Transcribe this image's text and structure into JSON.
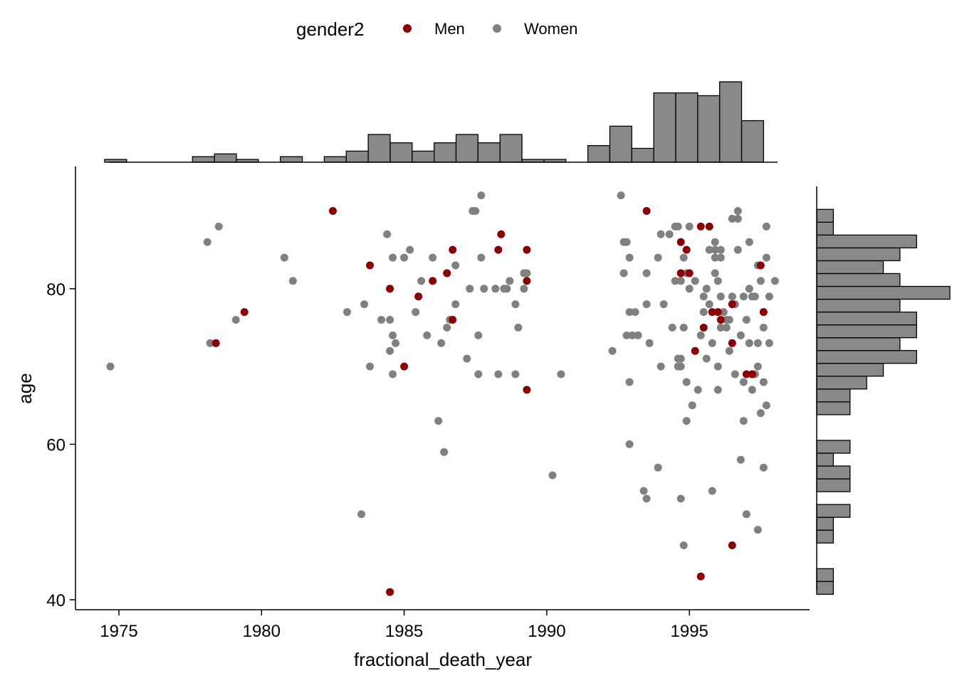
{
  "chart_data": {
    "type": "scatter",
    "title": "",
    "xlabel": "fractional_death_year",
    "ylabel": "age",
    "xlim": [
      1973.5,
      1999.2
    ],
    "ylim": [
      38.5,
      95
    ],
    "x_ticks": [
      1975,
      1980,
      1985,
      1990,
      1995
    ],
    "y_ticks": [
      40,
      60,
      80
    ],
    "x_tick_labels": [
      "1975",
      "1980",
      "1985",
      "1990",
      "1995"
    ],
    "y_tick_labels": [
      "40",
      "60",
      "80"
    ],
    "grid": false,
    "legend": {
      "title": "gender2",
      "position": "top",
      "entries": [
        {
          "label": "Men",
          "color": "#8b0000"
        },
        {
          "label": "Women",
          "color": "#808080"
        }
      ]
    },
    "series": [
      {
        "name": "Women",
        "color": "#808080",
        "points": [
          [
            1974.7,
            70
          ],
          [
            1978.1,
            86
          ],
          [
            1978.2,
            73
          ],
          [
            1978.5,
            88
          ],
          [
            1979.1,
            76
          ],
          [
            1980.8,
            84
          ],
          [
            1981.1,
            81
          ],
          [
            1983,
            77
          ],
          [
            1983.5,
            51
          ],
          [
            1983.6,
            78
          ],
          [
            1983.8,
            70
          ],
          [
            1984.2,
            76
          ],
          [
            1984.4,
            87
          ],
          [
            1984.5,
            72
          ],
          [
            1984.6,
            74
          ],
          [
            1984.6,
            69
          ],
          [
            1984.6,
            84
          ],
          [
            1984.7,
            73
          ],
          [
            1984.5,
            76
          ],
          [
            1985,
            84
          ],
          [
            1985.2,
            85
          ],
          [
            1985.4,
            77
          ],
          [
            1985.6,
            81
          ],
          [
            1985.8,
            74
          ],
          [
            1986,
            84
          ],
          [
            1986.2,
            63
          ],
          [
            1986.3,
            73
          ],
          [
            1986.4,
            59
          ],
          [
            1986.5,
            75
          ],
          [
            1986.6,
            76
          ],
          [
            1986.8,
            78
          ],
          [
            1986.8,
            83
          ],
          [
            1987.2,
            71
          ],
          [
            1987.4,
            90
          ],
          [
            1987.5,
            90
          ],
          [
            1987.6,
            74
          ],
          [
            1987.6,
            69
          ],
          [
            1987.7,
            92
          ],
          [
            1987.7,
            84
          ],
          [
            1987.8,
            80
          ],
          [
            1987.3,
            80
          ],
          [
            1988.2,
            80
          ],
          [
            1988.3,
            69
          ],
          [
            1988.5,
            80
          ],
          [
            1988.7,
            81
          ],
          [
            1988.6,
            80
          ],
          [
            1988.9,
            78
          ],
          [
            1988.9,
            69
          ],
          [
            1989,
            75
          ],
          [
            1989.2,
            82
          ],
          [
            1989.3,
            82
          ],
          [
            1989.2,
            80
          ],
          [
            1990.2,
            56
          ],
          [
            1990.5,
            69
          ],
          [
            1992.3,
            72
          ],
          [
            1992.6,
            92
          ],
          [
            1992.7,
            86
          ],
          [
            1992.7,
            82
          ],
          [
            1992.8,
            86
          ],
          [
            1992.8,
            74
          ],
          [
            1992.9,
            84
          ],
          [
            1992.9,
            77
          ],
          [
            1992.9,
            68
          ],
          [
            1992.9,
            60
          ],
          [
            1993,
            74
          ],
          [
            1993.1,
            77
          ],
          [
            1993.2,
            74
          ],
          [
            1993.4,
            54
          ],
          [
            1993.5,
            53
          ],
          [
            1993.5,
            82
          ],
          [
            1993.6,
            73
          ],
          [
            1993.5,
            78
          ],
          [
            1993.9,
            57
          ],
          [
            1993.9,
            84
          ],
          [
            1994,
            70
          ],
          [
            1994,
            87
          ],
          [
            1994.1,
            78
          ],
          [
            1994.3,
            87
          ],
          [
            1994.4,
            75
          ],
          [
            1994.5,
            81
          ],
          [
            1994.5,
            88
          ],
          [
            1994.6,
            70
          ],
          [
            1994.6,
            71
          ],
          [
            1994.6,
            88
          ],
          [
            1994.7,
            53
          ],
          [
            1994.7,
            71
          ],
          [
            1994.7,
            81
          ],
          [
            1994.7,
            70
          ],
          [
            1994.8,
            47
          ],
          [
            1994.8,
            84
          ],
          [
            1994.8,
            75
          ],
          [
            1994.9,
            68
          ],
          [
            1994.9,
            82
          ],
          [
            1994.9,
            63
          ],
          [
            1995,
            88
          ],
          [
            1995,
            80
          ],
          [
            1995.1,
            65
          ],
          [
            1995.2,
            81
          ],
          [
            1995.3,
            67
          ],
          [
            1995.4,
            74
          ],
          [
            1995.5,
            79
          ],
          [
            1995.6,
            80
          ],
          [
            1995.6,
            71
          ],
          [
            1995.7,
            78
          ],
          [
            1995.7,
            85
          ],
          [
            1995.8,
            77
          ],
          [
            1995.8,
            54
          ],
          [
            1995.8,
            73
          ],
          [
            1995.9,
            85
          ],
          [
            1995.9,
            82
          ],
          [
            1995.9,
            86
          ],
          [
            1995.9,
            84
          ],
          [
            1996,
            67
          ],
          [
            1996,
            70
          ],
          [
            1996,
            81
          ],
          [
            1996.1,
            85
          ],
          [
            1996.1,
            79
          ],
          [
            1996.1,
            84
          ],
          [
            1996.2,
            77
          ],
          [
            1996.3,
            75
          ],
          [
            1996.4,
            72
          ],
          [
            1996.4,
            76
          ],
          [
            1996.5,
            79
          ],
          [
            1996.5,
            89
          ],
          [
            1996.6,
            69
          ],
          [
            1996.6,
            78
          ],
          [
            1996.7,
            90
          ],
          [
            1996.7,
            89
          ],
          [
            1996.7,
            85
          ],
          [
            1996.8,
            74
          ],
          [
            1996.8,
            58
          ],
          [
            1996.9,
            68
          ],
          [
            1996.9,
            79
          ],
          [
            1996.9,
            63
          ],
          [
            1997,
            51
          ],
          [
            1997,
            76
          ],
          [
            1997.1,
            80
          ],
          [
            1997.1,
            86
          ],
          [
            1997.1,
            73
          ],
          [
            1997.2,
            79
          ],
          [
            1997.3,
            79
          ],
          [
            1997.3,
            69
          ],
          [
            1997.4,
            49
          ],
          [
            1997.4,
            70
          ],
          [
            1997.4,
            73
          ],
          [
            1997.4,
            83
          ],
          [
            1997.5,
            64
          ],
          [
            1997.5,
            81
          ],
          [
            1997.6,
            57
          ],
          [
            1997.6,
            68
          ],
          [
            1997.6,
            77
          ],
          [
            1997.6,
            75
          ],
          [
            1997.7,
            88
          ],
          [
            1997.7,
            84
          ],
          [
            1997.7,
            65
          ],
          [
            1997.8,
            79
          ],
          [
            1997.8,
            73
          ],
          [
            1998,
            81
          ],
          [
            1996.3,
            76
          ],
          [
            1996.1,
            75
          ],
          [
            1995.5,
            77
          ],
          [
            1997.2,
            67
          ]
        ]
      },
      {
        "name": "Men",
        "color": "#8b0000",
        "points": [
          [
            1978.4,
            73
          ],
          [
            1979.4,
            77
          ],
          [
            1982.5,
            90
          ],
          [
            1983.8,
            83
          ],
          [
            1984.5,
            80
          ],
          [
            1984.5,
            41
          ],
          [
            1985,
            70
          ],
          [
            1985.5,
            79
          ],
          [
            1986,
            81
          ],
          [
            1986.5,
            82
          ],
          [
            1986.7,
            85
          ],
          [
            1986.7,
            76
          ],
          [
            1988.3,
            85
          ],
          [
            1988.4,
            87
          ],
          [
            1989.3,
            85
          ],
          [
            1989.3,
            81
          ],
          [
            1989.3,
            67
          ],
          [
            1993.5,
            90
          ],
          [
            1994.7,
            86
          ],
          [
            1994.7,
            82
          ],
          [
            1994.9,
            85
          ],
          [
            1995,
            82
          ],
          [
            1995.2,
            72
          ],
          [
            1995.4,
            88
          ],
          [
            1995.5,
            75
          ],
          [
            1995.4,
            43
          ],
          [
            1995.7,
            88
          ],
          [
            1995.8,
            77
          ],
          [
            1996,
            77
          ],
          [
            1996.1,
            76
          ],
          [
            1996.5,
            78
          ],
          [
            1996.5,
            47
          ],
          [
            1996.5,
            73
          ],
          [
            1997,
            69
          ],
          [
            1997.2,
            69
          ],
          [
            1997.5,
            83
          ],
          [
            1997.6,
            77
          ]
        ]
      }
    ],
    "top_histogram": {
      "bin_edges_start": 1974.5,
      "bin_width": 0.77,
      "counts": [
        1,
        0,
        0,
        0,
        2,
        3,
        1,
        0,
        2,
        0,
        2,
        4,
        10,
        7,
        4,
        7,
        10,
        7,
        10,
        1,
        1,
        0,
        6,
        13,
        5,
        25,
        25,
        24,
        29,
        15
      ]
    },
    "right_histogram": {
      "bin_edges_start": 40.7,
      "bin_width": 1.65,
      "counts": [
        1,
        1,
        0,
        0,
        1,
        1,
        2,
        0,
        2,
        2,
        1,
        2,
        0,
        0,
        2,
        2,
        3,
        4,
        6,
        5,
        6,
        6,
        5,
        8,
        5,
        4,
        5,
        6,
        1,
        1
      ]
    }
  }
}
